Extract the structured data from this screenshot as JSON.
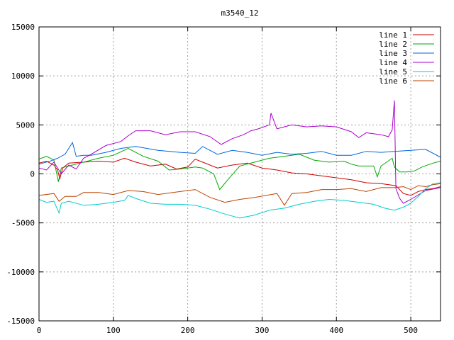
{
  "chart_data": {
    "type": "line",
    "title": "m3540_12",
    "xlabel": "",
    "ylabel": "",
    "xlim": [
      0,
      540
    ],
    "ylim": [
      -15000,
      15000
    ],
    "xticks": [
      0,
      100,
      200,
      300,
      400,
      500
    ],
    "yticks": [
      -15000,
      -10000,
      -5000,
      0,
      5000,
      10000,
      15000
    ],
    "grid": true,
    "legend_position": "top-right",
    "series": [
      {
        "name": "line 1",
        "color": "#cc0000",
        "points": [
          [
            0,
            1100
          ],
          [
            10,
            1300
          ],
          [
            20,
            900
          ],
          [
            25,
            400
          ],
          [
            28,
            -500
          ],
          [
            32,
            600
          ],
          [
            40,
            1100
          ],
          [
            60,
            1200
          ],
          [
            80,
            1300
          ],
          [
            100,
            1200
          ],
          [
            115,
            1600
          ],
          [
            130,
            1200
          ],
          [
            150,
            800
          ],
          [
            170,
            1000
          ],
          [
            185,
            500
          ],
          [
            200,
            700
          ],
          [
            210,
            1500
          ],
          [
            220,
            1200
          ],
          [
            240,
            600
          ],
          [
            260,
            900
          ],
          [
            280,
            1100
          ],
          [
            300,
            600
          ],
          [
            320,
            400
          ],
          [
            340,
            100
          ],
          [
            360,
            0
          ],
          [
            380,
            -200
          ],
          [
            400,
            -400
          ],
          [
            420,
            -600
          ],
          [
            440,
            -900
          ],
          [
            460,
            -1000
          ],
          [
            480,
            -1200
          ],
          [
            490,
            -2000
          ],
          [
            500,
            -2200
          ],
          [
            510,
            -1800
          ],
          [
            520,
            -1600
          ],
          [
            530,
            -1500
          ],
          [
            540,
            -1300
          ]
        ]
      },
      {
        "name": "line 2",
        "color": "#00aa00",
        "points": [
          [
            0,
            1500
          ],
          [
            10,
            1800
          ],
          [
            20,
            1400
          ],
          [
            26,
            -800
          ],
          [
            30,
            600
          ],
          [
            40,
            800
          ],
          [
            60,
            1200
          ],
          [
            80,
            1600
          ],
          [
            100,
            1900
          ],
          [
            120,
            2600
          ],
          [
            130,
            2200
          ],
          [
            140,
            1800
          ],
          [
            160,
            1300
          ],
          [
            175,
            400
          ],
          [
            190,
            500
          ],
          [
            200,
            600
          ],
          [
            210,
            700
          ],
          [
            220,
            600
          ],
          [
            235,
            0
          ],
          [
            243,
            -1600
          ],
          [
            255,
            -500
          ],
          [
            270,
            800
          ],
          [
            290,
            1200
          ],
          [
            310,
            1600
          ],
          [
            330,
            1800
          ],
          [
            350,
            2000
          ],
          [
            370,
            1400
          ],
          [
            390,
            1200
          ],
          [
            410,
            1300
          ],
          [
            420,
            1000
          ],
          [
            430,
            800
          ],
          [
            450,
            800
          ],
          [
            455,
            -300
          ],
          [
            460,
            800
          ],
          [
            475,
            1600
          ],
          [
            478,
            700
          ],
          [
            485,
            200
          ],
          [
            495,
            200
          ],
          [
            505,
            300
          ],
          [
            515,
            700
          ],
          [
            530,
            1100
          ],
          [
            540,
            1300
          ]
        ]
      },
      {
        "name": "line 3",
        "color": "#0066dd",
        "points": [
          [
            0,
            1000
          ],
          [
            15,
            1300
          ],
          [
            25,
            1600
          ],
          [
            35,
            2000
          ],
          [
            40,
            2600
          ],
          [
            45,
            3200
          ],
          [
            50,
            1800
          ],
          [
            60,
            1900
          ],
          [
            70,
            1900
          ],
          [
            90,
            2200
          ],
          [
            110,
            2600
          ],
          [
            130,
            2800
          ],
          [
            160,
            2400
          ],
          [
            190,
            2200
          ],
          [
            210,
            2100
          ],
          [
            220,
            2800
          ],
          [
            240,
            2000
          ],
          [
            260,
            2400
          ],
          [
            280,
            2200
          ],
          [
            300,
            1900
          ],
          [
            320,
            2200
          ],
          [
            340,
            2000
          ],
          [
            360,
            2100
          ],
          [
            380,
            2300
          ],
          [
            400,
            1900
          ],
          [
            420,
            1900
          ],
          [
            440,
            2300
          ],
          [
            460,
            2200
          ],
          [
            478,
            2300
          ],
          [
            500,
            2400
          ],
          [
            520,
            2500
          ],
          [
            540,
            1700
          ]
        ]
      },
      {
        "name": "line 4",
        "color": "#aa00cc",
        "points": [
          [
            0,
            600
          ],
          [
            10,
            400
          ],
          [
            20,
            1200
          ],
          [
            30,
            0
          ],
          [
            40,
            900
          ],
          [
            50,
            500
          ],
          [
            60,
            1600
          ],
          [
            70,
            2000
          ],
          [
            90,
            2900
          ],
          [
            110,
            3300
          ],
          [
            120,
            3900
          ],
          [
            130,
            4400
          ],
          [
            150,
            4400
          ],
          [
            170,
            4000
          ],
          [
            190,
            4300
          ],
          [
            210,
            4300
          ],
          [
            230,
            3800
          ],
          [
            245,
            3000
          ],
          [
            260,
            3600
          ],
          [
            275,
            4000
          ],
          [
            285,
            4400
          ],
          [
            295,
            4600
          ],
          [
            310,
            5000
          ],
          [
            312,
            6200
          ],
          [
            320,
            4600
          ],
          [
            340,
            5000
          ],
          [
            360,
            4800
          ],
          [
            380,
            4900
          ],
          [
            400,
            4800
          ],
          [
            420,
            4300
          ],
          [
            430,
            3700
          ],
          [
            440,
            4200
          ],
          [
            460,
            4000
          ],
          [
            470,
            3800
          ],
          [
            475,
            4500
          ],
          [
            478,
            7500
          ],
          [
            480,
            -1500
          ],
          [
            485,
            -2500
          ],
          [
            490,
            -3000
          ],
          [
            500,
            -2600
          ],
          [
            520,
            -1700
          ],
          [
            540,
            -1400
          ]
        ]
      },
      {
        "name": "line 5",
        "color": "#00cccc",
        "points": [
          [
            0,
            -2600
          ],
          [
            10,
            -2900
          ],
          [
            20,
            -2800
          ],
          [
            27,
            -4000
          ],
          [
            30,
            -3000
          ],
          [
            40,
            -2800
          ],
          [
            60,
            -3200
          ],
          [
            80,
            -3100
          ],
          [
            100,
            -2900
          ],
          [
            115,
            -2700
          ],
          [
            120,
            -2200
          ],
          [
            130,
            -2500
          ],
          [
            150,
            -3000
          ],
          [
            170,
            -3100
          ],
          [
            190,
            -3100
          ],
          [
            210,
            -3200
          ],
          [
            230,
            -3600
          ],
          [
            250,
            -4100
          ],
          [
            270,
            -4500
          ],
          [
            290,
            -4200
          ],
          [
            310,
            -3700
          ],
          [
            330,
            -3500
          ],
          [
            350,
            -3100
          ],
          [
            370,
            -2800
          ],
          [
            390,
            -2600
          ],
          [
            410,
            -2700
          ],
          [
            430,
            -2900
          ],
          [
            450,
            -3100
          ],
          [
            465,
            -3500
          ],
          [
            478,
            -3700
          ],
          [
            490,
            -3400
          ],
          [
            500,
            -3000
          ],
          [
            510,
            -2300
          ],
          [
            520,
            -1500
          ],
          [
            530,
            -1000
          ],
          [
            540,
            -900
          ]
        ]
      },
      {
        "name": "line 6",
        "color": "#bb4400",
        "points": [
          [
            0,
            -2200
          ],
          [
            20,
            -2000
          ],
          [
            27,
            -2800
          ],
          [
            35,
            -2300
          ],
          [
            50,
            -2300
          ],
          [
            60,
            -1900
          ],
          [
            80,
            -1900
          ],
          [
            100,
            -2100
          ],
          [
            120,
            -1700
          ],
          [
            140,
            -1800
          ],
          [
            160,
            -2100
          ],
          [
            190,
            -1800
          ],
          [
            210,
            -1600
          ],
          [
            230,
            -2400
          ],
          [
            250,
            -2900
          ],
          [
            270,
            -2600
          ],
          [
            290,
            -2400
          ],
          [
            320,
            -2000
          ],
          [
            330,
            -3200
          ],
          [
            340,
            -2000
          ],
          [
            360,
            -1900
          ],
          [
            380,
            -1600
          ],
          [
            400,
            -1600
          ],
          [
            420,
            -1500
          ],
          [
            440,
            -1800
          ],
          [
            460,
            -1400
          ],
          [
            478,
            -1400
          ],
          [
            490,
            -1300
          ],
          [
            500,
            -1600
          ],
          [
            510,
            -1200
          ],
          [
            520,
            -1300
          ],
          [
            530,
            -1100
          ],
          [
            540,
            -1000
          ]
        ]
      }
    ]
  }
}
